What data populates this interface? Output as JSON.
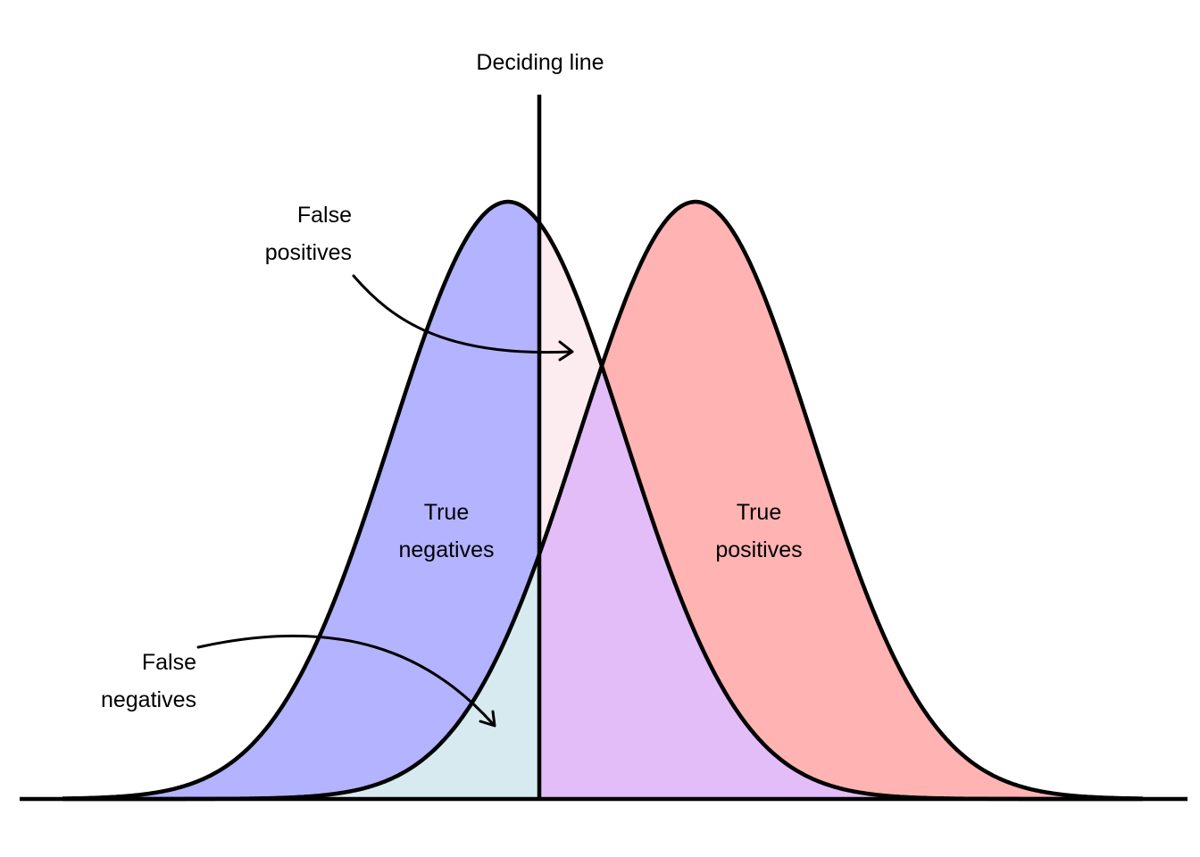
{
  "labels": {
    "deciding_line": "Deciding line",
    "false_positives": [
      "False",
      "positives"
    ],
    "true_negatives": [
      "True",
      "negatives"
    ],
    "true_positives": [
      "True",
      "positives"
    ],
    "false_negatives": [
      "False",
      "negatives"
    ]
  },
  "colors": {
    "negative_fill": "#b3b3ff",
    "positive_fill": "#ffb3b3",
    "false_positive_fill": "#fdecef",
    "false_negative_fill": "#d7eaf0",
    "overlap_fill": "#e2bdf8",
    "stroke": "#000000",
    "background": "#ffffff"
  }
}
